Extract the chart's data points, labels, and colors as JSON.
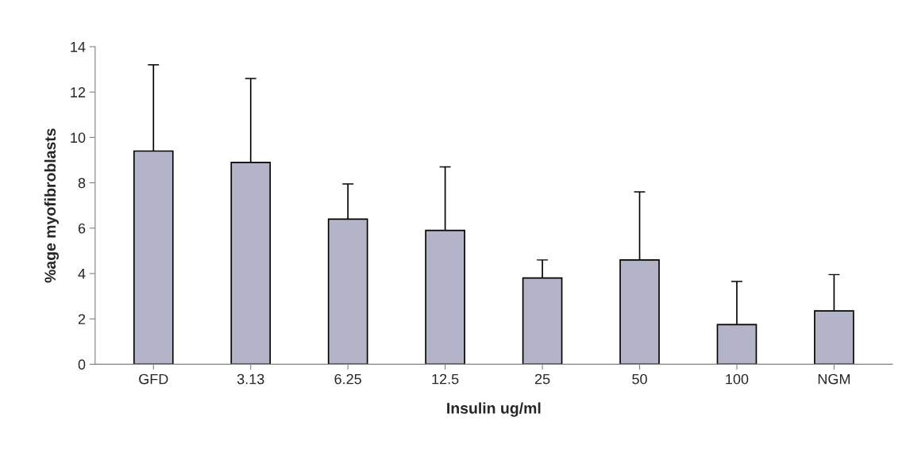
{
  "chart_data": {
    "type": "bar",
    "xlabel": "Insulin ug/ml",
    "ylabel": "%age myofibroblasts",
    "categories": [
      "GFD",
      "3.13",
      "6.25",
      "12.5",
      "25",
      "50",
      "100",
      "NGM"
    ],
    "values": [
      9.4,
      8.9,
      6.4,
      5.9,
      3.8,
      4.6,
      1.75,
      2.35
    ],
    "errors": [
      3.8,
      3.7,
      1.55,
      2.8,
      0.8,
      3.0,
      1.9,
      1.6
    ],
    "color": "#b4b4c8",
    "ylim": [
      0,
      14
    ],
    "yticks": [
      0,
      2,
      4,
      6,
      8,
      10,
      12,
      14
    ],
    "grid": false
  }
}
